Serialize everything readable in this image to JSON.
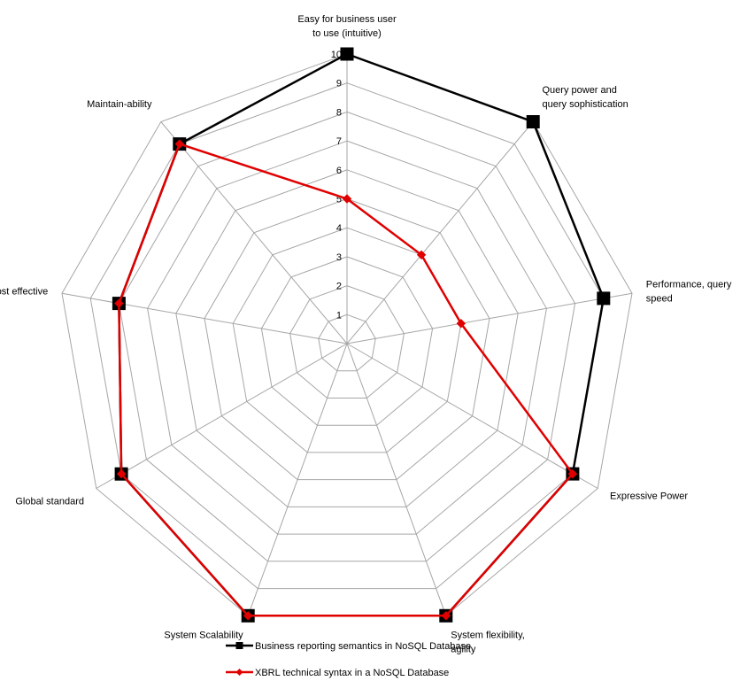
{
  "chart_data": {
    "type": "radar",
    "axes": [
      {
        "lines": [
          "Easy for business user",
          "to use (intuitive)"
        ]
      },
      {
        "lines": [
          "Query power and",
          "query sophistication"
        ]
      },
      {
        "lines": [
          "Performance, query",
          "speed"
        ]
      },
      {
        "lines": [
          "Expressive Power"
        ]
      },
      {
        "lines": [
          "System flexibility,",
          "agility"
        ]
      },
      {
        "lines": [
          "System Scalability"
        ]
      },
      {
        "lines": [
          "Global standard"
        ]
      },
      {
        "lines": [
          "Cost effective"
        ]
      },
      {
        "lines": [
          "Maintain-ability"
        ]
      }
    ],
    "rlim": [
      0,
      10
    ],
    "ticks": [
      1,
      2,
      3,
      4,
      5,
      6,
      7,
      8,
      9,
      10
    ],
    "grid": true,
    "legend_position": "bottom",
    "series": [
      {
        "name": "Business reporting semantics in NoSQL Database",
        "values": [
          10,
          10,
          9,
          9,
          10,
          10,
          9,
          8,
          9
        ],
        "color": "#000000",
        "marker": "square"
      },
      {
        "name": "XBRL technical syntax in a NoSQL Database",
        "values": [
          5,
          4,
          4,
          9,
          10,
          10,
          9,
          8,
          9
        ],
        "color": "#e00000",
        "marker": "diamond"
      }
    ]
  }
}
